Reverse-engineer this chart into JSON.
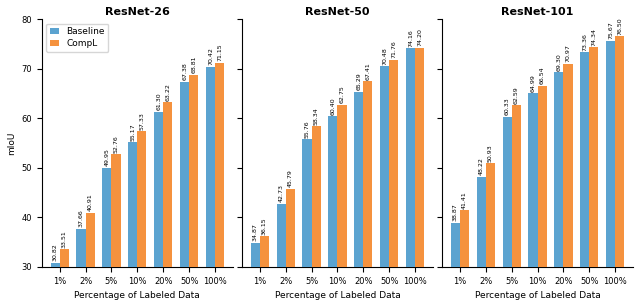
{
  "resnet26": {
    "baseline": [
      30.82,
      37.66,
      49.95,
      55.17,
      61.3,
      67.38,
      70.42
    ],
    "compl": [
      33.51,
      40.91,
      52.76,
      57.33,
      63.22,
      68.81,
      71.15
    ]
  },
  "resnet50": {
    "baseline": [
      34.87,
      42.73,
      55.76,
      60.4,
      65.29,
      70.48,
      74.16
    ],
    "compl": [
      36.15,
      45.79,
      58.34,
      62.75,
      67.41,
      71.76,
      74.2
    ]
  },
  "resnet101": {
    "baseline": [
      38.87,
      48.22,
      60.33,
      64.99,
      69.3,
      73.36,
      75.67
    ],
    "compl": [
      41.41,
      50.93,
      62.59,
      66.54,
      70.97,
      74.34,
      76.5
    ]
  },
  "x_labels": [
    "1%",
    "2%",
    "5%",
    "10%",
    "20%",
    "50%",
    "100%"
  ],
  "titles": [
    "ResNet-26",
    "ResNet-50",
    "ResNet-101"
  ],
  "ylabel": "mIoU",
  "xlabel": "Percentage of Labeled Data",
  "ylim": [
    30,
    80
  ],
  "yticks": [
    30,
    40,
    50,
    60,
    70,
    80
  ],
  "baseline_color": "#5ba3d0",
  "compl_color": "#f5923e",
  "legend_labels": [
    "Baseline",
    "CompL"
  ],
  "bar_width": 0.35,
  "value_fontsize": 4.5,
  "title_fontsize": 8,
  "label_fontsize": 6.5,
  "tick_fontsize": 6
}
